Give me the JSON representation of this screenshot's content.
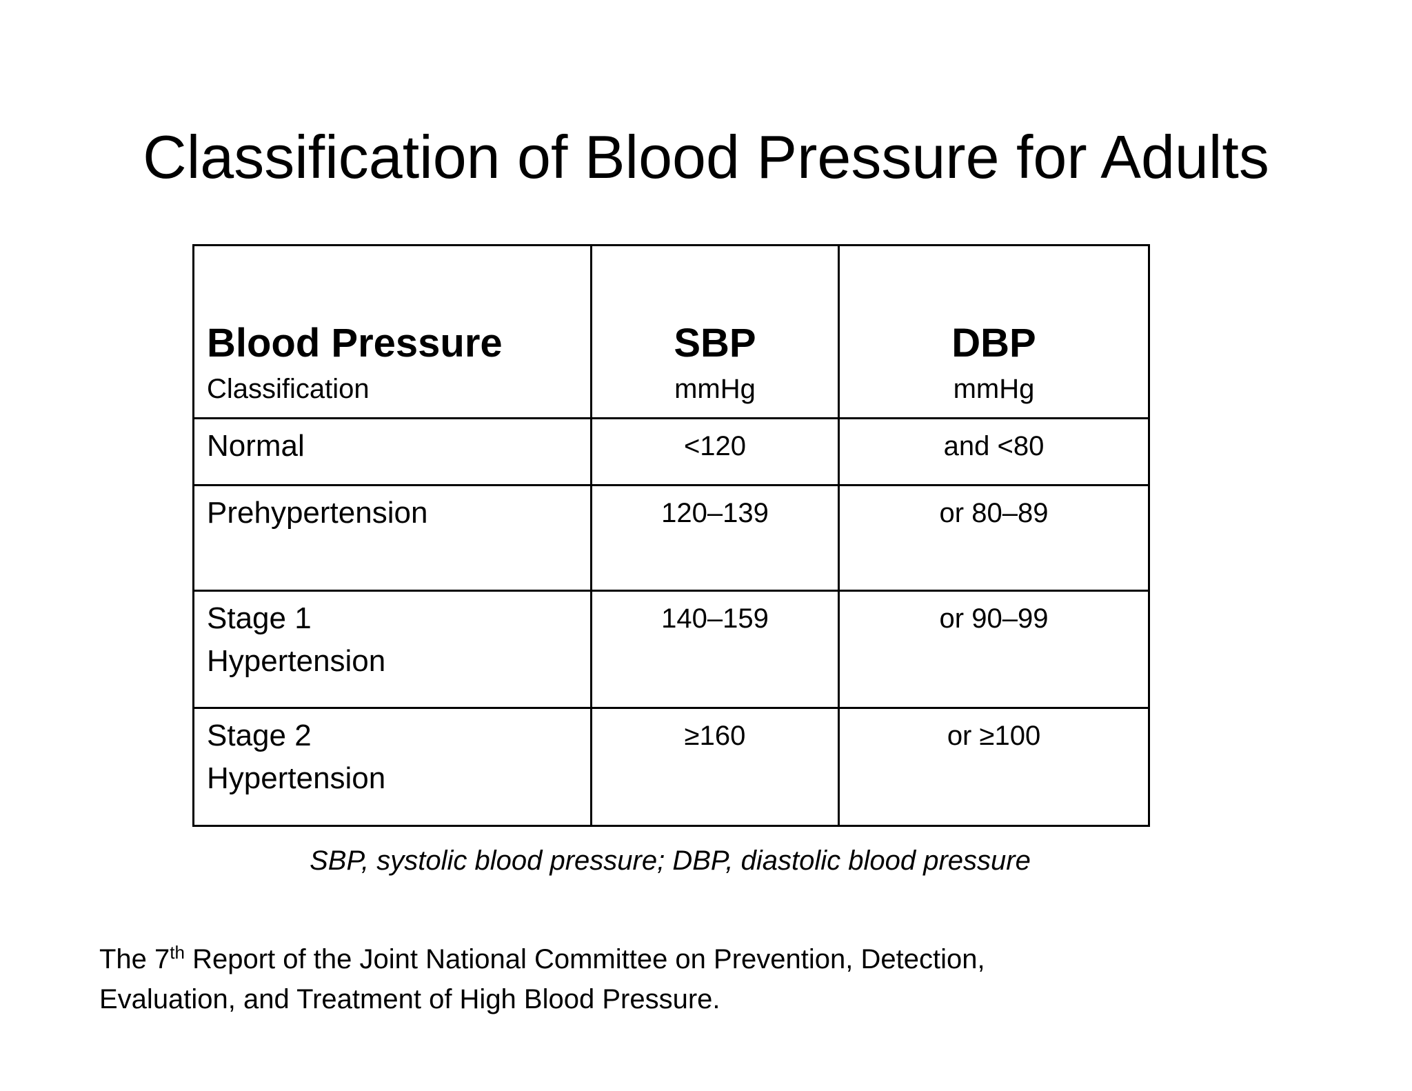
{
  "slide": {
    "title": "Classification of Blood Pressure for Adults"
  },
  "table": {
    "headers": [
      {
        "main": "Blood Pressure",
        "sub": "Classification"
      },
      {
        "main": "SBP",
        "sub": "mmHg"
      },
      {
        "main": "DBP",
        "sub": "mmHg"
      }
    ],
    "rows": [
      {
        "category_line1": "Normal",
        "category_line2": "",
        "sbp": "<120",
        "dbp": "and <80"
      },
      {
        "category_line1": "Prehypertension",
        "category_line2": "",
        "sbp": "120–139",
        "dbp": "or 80–89"
      },
      {
        "category_line1": "Stage 1",
        "category_line2": "Hypertension",
        "sbp": "140–159",
        "dbp": "or 90–99"
      },
      {
        "category_line1": "Stage 2",
        "category_line2": "Hypertension",
        "sbp": "≥160",
        "dbp": "or ≥100"
      }
    ]
  },
  "footnote": "SBP, systolic blood pressure; DBP, diastolic blood pressure",
  "citation": {
    "prefix": "The 7",
    "superscript": "th",
    "line1_rest": " Report of the Joint National Committee on Prevention, Detection,",
    "line2": "Evaluation, and Treatment of High Blood Pressure."
  }
}
